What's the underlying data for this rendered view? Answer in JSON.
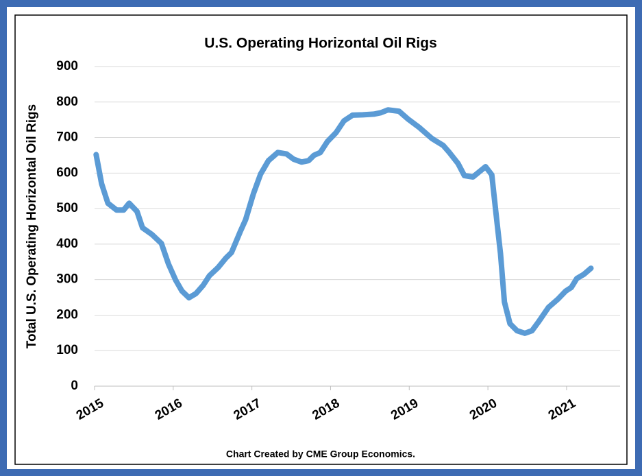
{
  "chart_data": {
    "type": "line",
    "title": "U.S.  Operating Horizontal Oil Rigs",
    "y_label": "Total U.S. Operating Horizontal Oil Rigs",
    "note": "Chart Created by CME Group Economics.",
    "color": "#5b9bd5",
    "grid": true,
    "xlim": [
      2015,
      2021.68
    ],
    "xticks": [
      2015,
      2016,
      2017,
      2018,
      2019,
      2020,
      2021
    ],
    "ylim": [
      0,
      900
    ],
    "yticks": [
      0,
      100,
      200,
      300,
      400,
      500,
      600,
      700,
      800,
      900
    ],
    "x": [
      2015.02,
      2015.09,
      2015.17,
      2015.28,
      2015.37,
      2015.44,
      2015.54,
      2015.61,
      2015.73,
      2015.85,
      2015.94,
      2016.03,
      2016.11,
      2016.2,
      2016.29,
      2016.38,
      2016.46,
      2016.57,
      2016.67,
      2016.74,
      2016.85,
      2016.92,
      2017.02,
      2017.11,
      2017.21,
      2017.33,
      2017.44,
      2017.53,
      2017.63,
      2017.72,
      2017.79,
      2017.87,
      2017.96,
      2018.07,
      2018.17,
      2018.28,
      2018.41,
      2018.55,
      2018.64,
      2018.73,
      2018.87,
      2018.99,
      2019.13,
      2019.29,
      2019.43,
      2019.51,
      2019.62,
      2019.7,
      2019.81,
      2019.97,
      2020.05,
      2020.1,
      2020.16,
      2020.21,
      2020.28,
      2020.37,
      2020.47,
      2020.56,
      2020.64,
      2020.77,
      2020.89,
      2020.99,
      2021.06,
      2021.13,
      2021.22,
      2021.31
    ],
    "values": [
      652,
      570,
      515,
      496,
      496,
      515,
      492,
      446,
      427,
      402,
      344,
      299,
      268,
      249,
      261,
      284,
      311,
      334,
      361,
      376,
      434,
      469,
      542,
      597,
      635,
      658,
      654,
      639,
      631,
      635,
      650,
      658,
      689,
      714,
      747,
      763,
      764,
      766,
      770,
      778,
      774,
      751,
      728,
      697,
      678,
      658,
      627,
      593,
      589,
      618,
      595,
      492,
      373,
      237,
      176,
      156,
      149,
      156,
      180,
      222,
      245,
      268,
      278,
      303,
      315,
      332
    ]
  }
}
